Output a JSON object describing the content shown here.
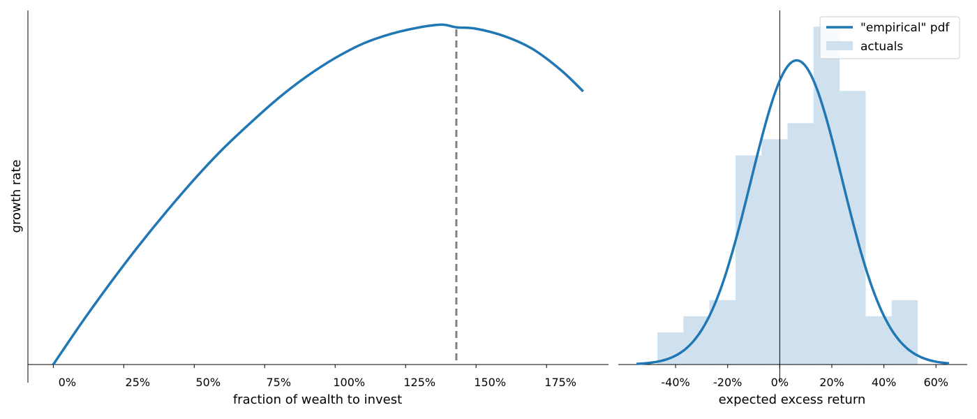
{
  "chart_data": [
    {
      "type": "line",
      "xlabel": "fraction of wealth to invest",
      "ylabel": "growth rate",
      "xlim": [
        -0.09,
        1.97
      ],
      "ylim": [
        0,
        1.05
      ],
      "x_ticks": [
        0,
        0.25,
        0.5,
        0.75,
        1.0,
        1.25,
        1.5,
        1.75
      ],
      "x_tick_labels": [
        "0%",
        "25%",
        "50%",
        "75%",
        "100%",
        "125%",
        "150%",
        "175%"
      ],
      "y_ticks_visible": false,
      "series": [
        {
          "x": [
            0.0,
            0.1,
            0.2,
            0.3,
            0.4,
            0.5,
            0.6,
            0.7,
            0.8,
            0.9,
            1.0,
            1.1,
            1.2,
            1.3,
            1.38,
            1.43,
            1.5,
            1.6,
            1.7,
            1.8,
            1.88
          ],
          "y": [
            0.0,
            0.123,
            0.239,
            0.349,
            0.452,
            0.549,
            0.638,
            0.717,
            0.791,
            0.855,
            0.909,
            0.952,
            0.981,
            1.0,
            1.008,
            1.0,
            0.996,
            0.974,
            0.936,
            0.874,
            0.81
          ]
        }
      ],
      "vline": {
        "x": 1.43,
        "style": "dashed",
        "color": "#7f7f7f"
      },
      "grid": false
    },
    {
      "type": "bar",
      "xlabel": "expected excess return",
      "xlim": [
        -0.62,
        0.72
      ],
      "ylim": [
        0,
        1.1
      ],
      "x_ticks": [
        -0.4,
        -0.2,
        0.0,
        0.2,
        0.4,
        0.6
      ],
      "x_tick_labels": [
        "-40%",
        "-20%",
        "0%",
        "20%",
        "40%",
        "60%"
      ],
      "bins": [
        -0.47,
        -0.37,
        -0.27,
        -0.17,
        -0.07,
        0.03,
        0.13,
        0.23,
        0.33,
        0.43,
        0.53
      ],
      "bin_heights": [
        0.1,
        0.15,
        0.2,
        0.65,
        0.7,
        0.75,
        1.05,
        0.85,
        0.15,
        0.2
      ],
      "pdf": {
        "mean": 0.065,
        "std": 0.175,
        "peak": 0.945
      },
      "legend": {
        "position": "top-right",
        "entries": [
          "\"empirical\" pdf",
          "actuals"
        ]
      },
      "zero_line": true,
      "grid": false
    }
  ],
  "colors": {
    "line": "#1f77b4",
    "hist": "#cfe1ef",
    "vline": "#7f7f7f",
    "axis": "#000000"
  }
}
